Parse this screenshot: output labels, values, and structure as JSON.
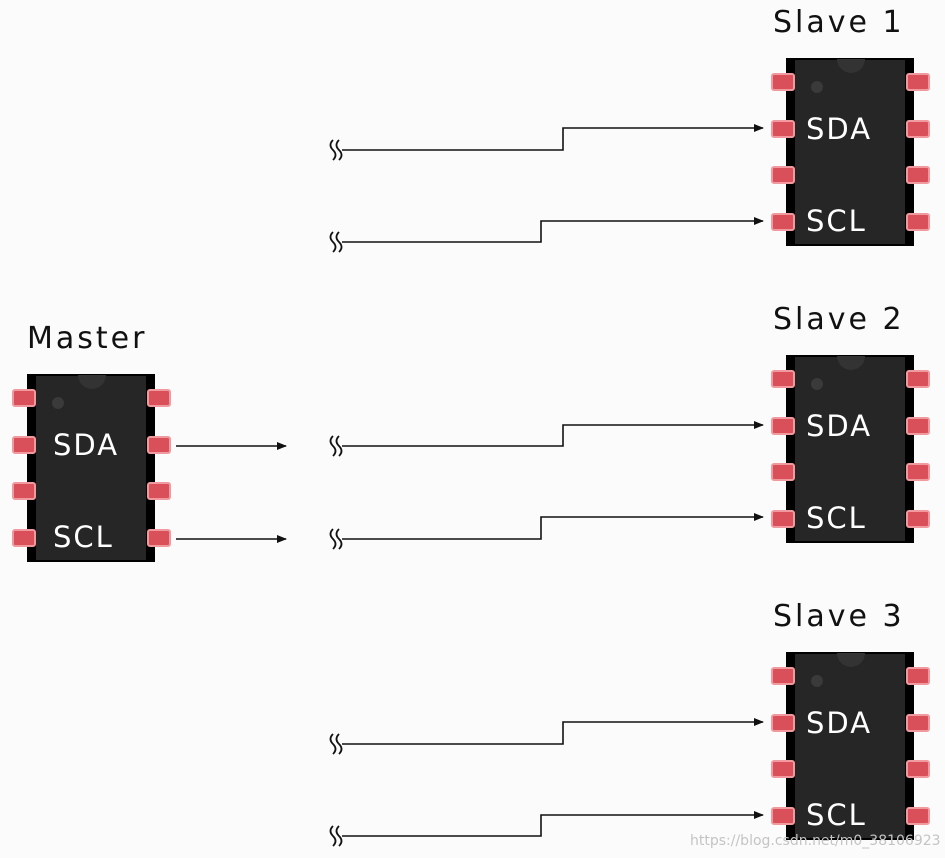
{
  "master": {
    "title": "Master",
    "pins": [
      "SDA",
      "SCL"
    ]
  },
  "slaves": [
    {
      "title": "Slave 1",
      "pins": [
        "SDA",
        "SCL"
      ]
    },
    {
      "title": "Slave 2",
      "pins": [
        "SDA",
        "SCL"
      ]
    },
    {
      "title": "Slave 3",
      "pins": [
        "SDA",
        "SCL"
      ]
    }
  ],
  "watermark": "https://blog.csdn.net/m0_38106923",
  "colors": {
    "chip_body": "#262626",
    "chip_edge": "#000000",
    "pin_fill": "#d9505a",
    "pin_stroke": "#f09aa0",
    "wire": "#111111",
    "background": "#fbfbfb"
  }
}
